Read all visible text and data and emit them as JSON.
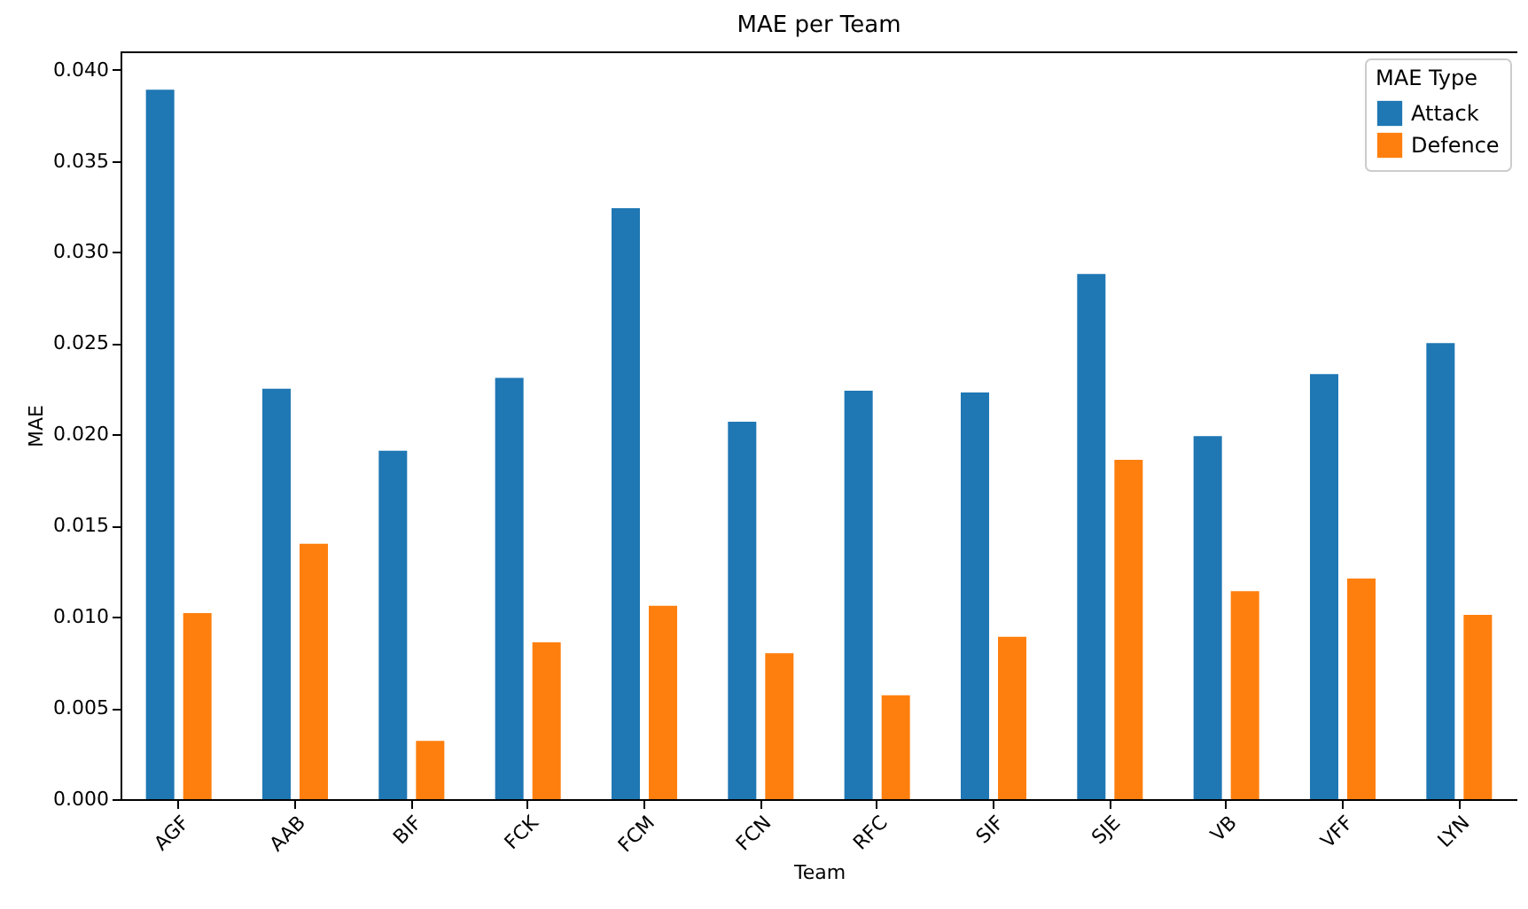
{
  "chart_data": {
    "type": "bar",
    "title": "MAE per Team",
    "xlabel": "Team",
    "ylabel": "MAE",
    "legend_title": "MAE Type",
    "categories": [
      "AGF",
      "AAB",
      "BIF",
      "FCK",
      "FCM",
      "FCN",
      "RFC",
      "SIF",
      "SJE",
      "VB",
      "VFF",
      "LYN"
    ],
    "series": [
      {
        "name": "Attack",
        "color": "#1f77b4",
        "values": [
          0.0389,
          0.0225,
          0.0191,
          0.0231,
          0.0324,
          0.0207,
          0.0224,
          0.0223,
          0.0288,
          0.0199,
          0.0233,
          0.025
        ]
      },
      {
        "name": "Defence",
        "color": "#ff7f0e",
        "values": [
          0.0102,
          0.014,
          0.0032,
          0.0086,
          0.0106,
          0.008,
          0.0057,
          0.0089,
          0.0186,
          0.0114,
          0.0121,
          0.0101
        ]
      }
    ],
    "ylim": [
      0,
      0.041
    ],
    "yticks": [
      {
        "value": 0,
        "label": "0.000"
      },
      {
        "value": 0.005,
        "label": "0.005"
      },
      {
        "value": 0.01,
        "label": "0.010"
      },
      {
        "value": 0.015,
        "label": "0.015"
      },
      {
        "value": 0.02,
        "label": "0.020"
      },
      {
        "value": 0.025,
        "label": "0.025"
      },
      {
        "value": 0.03,
        "label": "0.030"
      },
      {
        "value": 0.035,
        "label": "0.035"
      },
      {
        "value": 0.04,
        "label": "0.040"
      }
    ],
    "grid": false,
    "legend": "top right"
  }
}
